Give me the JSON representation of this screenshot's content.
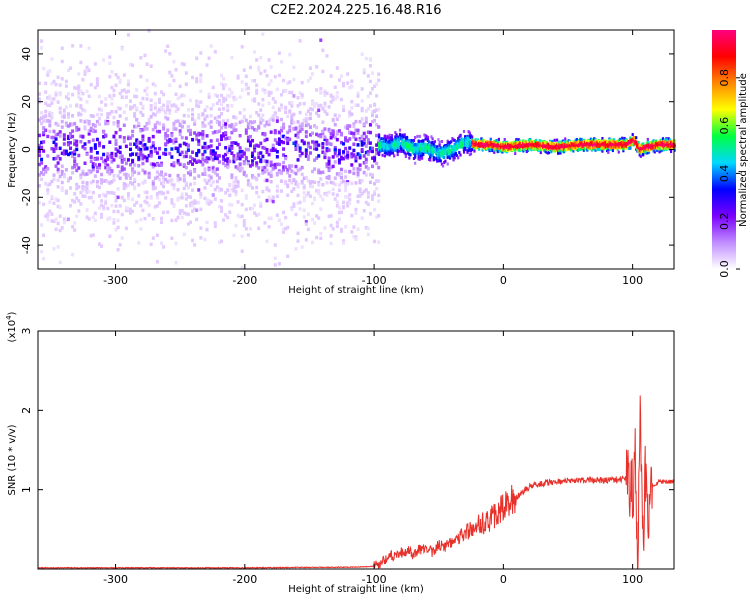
{
  "chart_data": [
    {
      "type": "heatmap",
      "title": "C2E2.2024.225.16.48.R16",
      "xlabel": "Height of straight line (km)",
      "ylabel": "Frequency (Hz)",
      "xlim": [
        -360,
        132
      ],
      "ylim": [
        -50,
        50
      ],
      "xticks": [
        -300,
        -200,
        -100,
        0,
        100
      ],
      "xtick_labels": [
        "-300",
        "-200",
        "-100",
        "0",
        "100"
      ],
      "yticks": [
        -40,
        -20,
        0,
        20,
        40
      ],
      "ytick_labels": [
        "-40",
        "-20",
        "0",
        "20",
        "40"
      ],
      "colorbar": {
        "label": "Normalized spectral amplitude",
        "range": [
          0,
          1
        ],
        "ticks": [
          0.0,
          0.2,
          0.4,
          0.6,
          0.8
        ],
        "tick_labels": [
          "0.0",
          "0.2",
          "0.4",
          "0.6",
          "0.8"
        ],
        "colors": [
          "#ffffff",
          "#c08cff",
          "#7a00ff",
          "#0000ff",
          "#00d8ff",
          "#00ff40",
          "#ffff00",
          "#ff8800",
          "#ff0000",
          "#ff0080"
        ]
      },
      "description_regions": [
        {
          "x_range": [
            -360,
            -97
          ],
          "y_range": [
            -50,
            50
          ],
          "amplitude": "scattered noise, strongest within about ±10 Hz"
        },
        {
          "x_range": [
            -97,
            132
          ],
          "y_center_hz": 2,
          "amplitude": "narrow band; high (red) from about -25 km to 130 km"
        }
      ],
      "ridge": {
        "x": [
          -97,
          -90,
          -80,
          -70,
          -60,
          -50,
          -40,
          -30,
          -20,
          -10,
          0,
          20,
          40,
          60,
          80,
          95,
          100,
          105,
          110,
          120,
          132
        ],
        "y": [
          2,
          1,
          3,
          0,
          1,
          -2,
          0,
          3,
          2,
          2,
          1,
          2,
          1,
          2,
          2,
          2,
          4,
          0,
          1,
          2,
          2
        ]
      }
    },
    {
      "type": "line",
      "xlabel": "Height of straight line (km)",
      "ylabel": "SNR (10 * v/v)",
      "y_multiplier_label": "(x10",
      "y_multiplier_exp": "4",
      "y_multiplier_close": ")",
      "xlim": [
        -360,
        132
      ],
      "ylim": [
        0,
        3.0
      ],
      "y_scale_factor": 10000,
      "xticks": [
        -300,
        -200,
        -100,
        0,
        100
      ],
      "xtick_labels": [
        "-300",
        "-200",
        "-100",
        "0",
        "100"
      ],
      "yticks": [
        1,
        2,
        3
      ],
      "ytick_labels": [
        "1",
        "2",
        "3"
      ],
      "color": "#e8302a",
      "series": [
        {
          "x": [
            -360,
            -300,
            -200,
            -110,
            -100,
            -95,
            -90,
            -85,
            -80,
            -75,
            -70,
            -65,
            -60,
            -55,
            -50,
            -45,
            -40,
            -35,
            -30,
            -25,
            -20,
            -15,
            -10,
            -5,
            0,
            5,
            10,
            15,
            20,
            25,
            30,
            40,
            50,
            60,
            70,
            80,
            90,
            95,
            98,
            100,
            102,
            104,
            106,
            108,
            110,
            112,
            115,
            120,
            125,
            132
          ],
          "y": [
            0.01,
            0.01,
            0.01,
            0.02,
            0.03,
            0.08,
            0.14,
            0.18,
            0.2,
            0.22,
            0.2,
            0.24,
            0.26,
            0.22,
            0.3,
            0.28,
            0.36,
            0.4,
            0.45,
            0.5,
            0.55,
            0.58,
            0.62,
            0.7,
            0.78,
            0.85,
            0.9,
            0.98,
            1.03,
            1.06,
            1.08,
            1.1,
            1.11,
            1.12,
            1.12,
            1.12,
            1.13,
            1.14,
            1.1,
            0.9,
            1.6,
            0.1,
            2.2,
            0.3,
            1.3,
            0.8,
            1.05,
            1.1,
            1.1,
            1.1
          ]
        }
      ]
    }
  ]
}
